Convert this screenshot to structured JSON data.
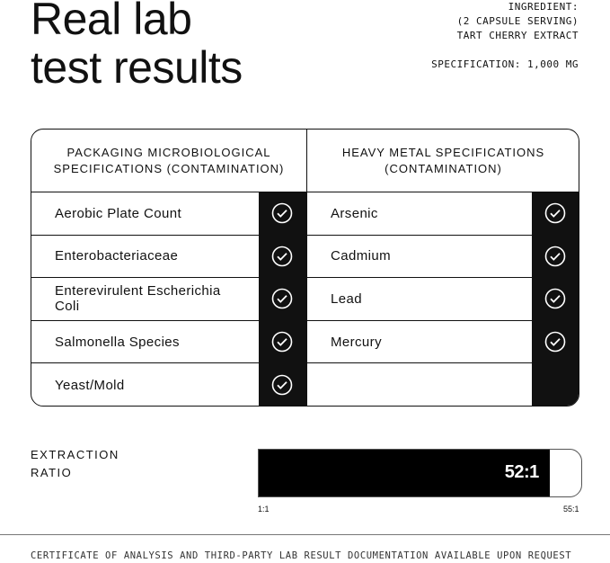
{
  "title": [
    "Real lab",
    "test results"
  ],
  "ingredient": {
    "label": "INGREDIENT:",
    "serving": "(2 CAPSULE SERVING)",
    "name": "TART CHERRY EXTRACT",
    "specification": "SPECIFICATION: 1,000 MG"
  },
  "tables": [
    {
      "header": "PACKAGING MICROBIOLOGICAL SPECIFICATIONS (CONTAMINATION)",
      "rows": [
        {
          "label": "Aerobic Plate Count",
          "passed": true
        },
        {
          "label": "Enterobacteriaceae",
          "passed": true
        },
        {
          "label": "Enterevirulent Escherichia Coli",
          "passed": true
        },
        {
          "label": "Salmonella Species",
          "passed": true
        },
        {
          "label": "Yeast/Mold",
          "passed": true
        }
      ]
    },
    {
      "header": "HEAVY METAL SPECIFICATIONS (CONTAMINATION)",
      "rows": [
        {
          "label": "Arsenic",
          "passed": true
        },
        {
          "label": "Cadmium",
          "passed": true
        },
        {
          "label": "Lead",
          "passed": true
        },
        {
          "label": "Mercury",
          "passed": true
        },
        {
          "label": "",
          "passed": false
        }
      ]
    }
  ],
  "extraction": {
    "label": "EXTRACTION RATIO",
    "value": "52:1",
    "value_num": 52,
    "min_label": "1:1",
    "max_label": "55:1",
    "min": 1,
    "max": 55
  },
  "footer": "CERTIFICATE OF ANALYSIS AND THIRD-PARTY LAB RESULT DOCUMENTATION AVAILABLE UPON REQUEST",
  "icons": {
    "check": "check-circle-icon"
  }
}
